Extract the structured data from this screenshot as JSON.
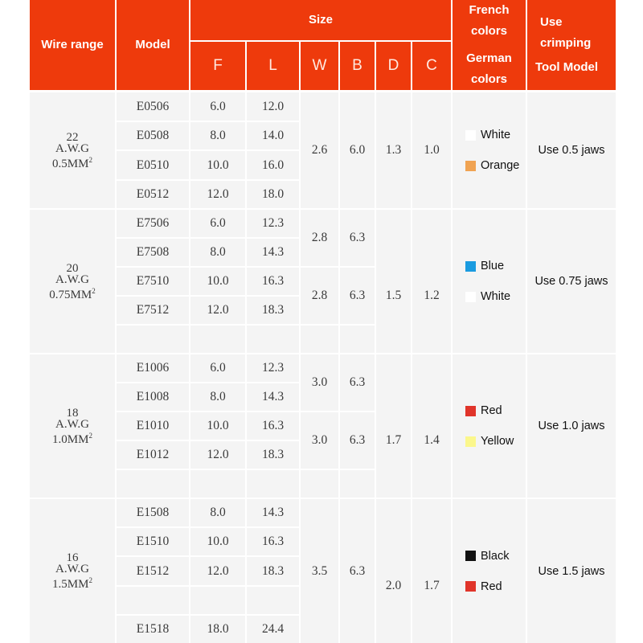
{
  "header": {
    "wire_range": "Wire range",
    "model": "Model",
    "size": "Size",
    "size_cols": [
      "F",
      "L",
      "W",
      "B",
      "D",
      "C"
    ],
    "french_colors": "French colors",
    "german_colors": "German colors",
    "tool_line1": "Use crimping",
    "tool_line2": "Tool Model"
  },
  "theme": {
    "header_bg": "#ee3a0c",
    "body_bg": "#f4f4f4"
  },
  "groups": [
    {
      "awg": "22",
      "awg_unit": "A.W.G",
      "mm": "0.5MM",
      "mm_sup": "2",
      "rows": [
        [
          "E0506",
          "6.0",
          "12.0"
        ],
        [
          "E0508",
          "8.0",
          "14.0"
        ],
        [
          "E0510",
          "10.0",
          "16.0"
        ],
        [
          "E0512",
          "12.0",
          "18.0"
        ]
      ],
      "wb": [
        {
          "from": 0,
          "to": 3,
          "W": "2.6",
          "B": "6.0"
        }
      ],
      "D": "1.3",
      "C": "1.0",
      "colors": [
        {
          "name": "White",
          "hex": "#ffffff"
        },
        {
          "name": "Orange",
          "hex": "#f0a352"
        }
      ],
      "tool": "Use 0.5 jaws"
    },
    {
      "awg": "20",
      "awg_unit": "A.W.G",
      "mm": "0.75MM",
      "mm_sup": "2",
      "rows": [
        [
          "E7506",
          "6.0",
          "12.3"
        ],
        [
          "E7508",
          "8.0",
          "14.3"
        ],
        [
          "E7510",
          "10.0",
          "16.3"
        ],
        [
          "E7512",
          "12.0",
          "18.3"
        ],
        [
          "",
          "",
          ""
        ]
      ],
      "wb": [
        {
          "from": 0,
          "to": 1,
          "W": "2.8",
          "B": "6.3"
        },
        {
          "from": 2,
          "to": 3,
          "W": "2.8",
          "B": "6.3"
        },
        {
          "from": 4,
          "to": 4,
          "W": "",
          "B": ""
        }
      ],
      "D": "1.5",
      "C": "1.2",
      "colors": [
        {
          "name": "Blue",
          "hex": "#1a9be0"
        },
        {
          "name": "White",
          "hex": "#ffffff"
        }
      ],
      "tool": "Use 0.75 jaws"
    },
    {
      "awg": "18",
      "awg_unit": "A.W.G",
      "mm": "1.0MM",
      "mm_sup": "2",
      "rows": [
        [
          "E1006",
          "6.0",
          "12.3"
        ],
        [
          "E1008",
          "8.0",
          "14.3"
        ],
        [
          "E1010",
          "10.0",
          "16.3"
        ],
        [
          "E1012",
          "12.0",
          "18.3"
        ],
        [
          "",
          "",
          ""
        ]
      ],
      "wb": [
        {
          "from": 0,
          "to": 1,
          "W": "3.0",
          "B": "6.3"
        },
        {
          "from": 2,
          "to": 3,
          "W": "3.0",
          "B": "6.3"
        },
        {
          "from": 4,
          "to": 4,
          "W": "",
          "B": ""
        }
      ],
      "D": "1.7",
      "C": "1.4",
      "colors": [
        {
          "name": "Red",
          "hex": "#e0342a"
        },
        {
          "name": "Yellow",
          "hex": "#fbf78c"
        }
      ],
      "tool": "Use 1.0 jaws"
    },
    {
      "awg": "16",
      "awg_unit": "A.W.G",
      "mm": "1.5MM",
      "mm_sup": "2",
      "rows": [
        [
          "E1508",
          "8.0",
          "14.3"
        ],
        [
          "E1510",
          "10.0",
          "16.3"
        ],
        [
          "E1512",
          "12.0",
          "18.3"
        ],
        [
          "",
          "",
          ""
        ],
        [
          "E1518",
          "18.0",
          "24.4"
        ]
      ],
      "wb": [
        {
          "from": 0,
          "to": 4,
          "W": "3.5",
          "B": "6.3"
        }
      ],
      "D": "2.0",
      "C": "1.7",
      "colors": [
        {
          "name": "Black",
          "hex": "#111111"
        },
        {
          "name": "Red",
          "hex": "#e0342a"
        }
      ],
      "tool": "Use 1.5 jaws"
    }
  ]
}
